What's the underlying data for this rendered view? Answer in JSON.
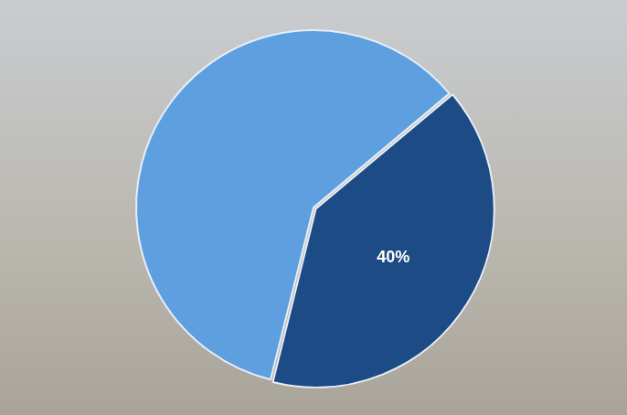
{
  "chart_data": {
    "type": "pie",
    "categories": [
      null,
      null
    ],
    "values": [
      60,
      40
    ],
    "value_labels": [
      null,
      "40%"
    ],
    "data_labels": true,
    "colors": [
      "#5e9fe0",
      "#1d4b86"
    ]
  }
}
